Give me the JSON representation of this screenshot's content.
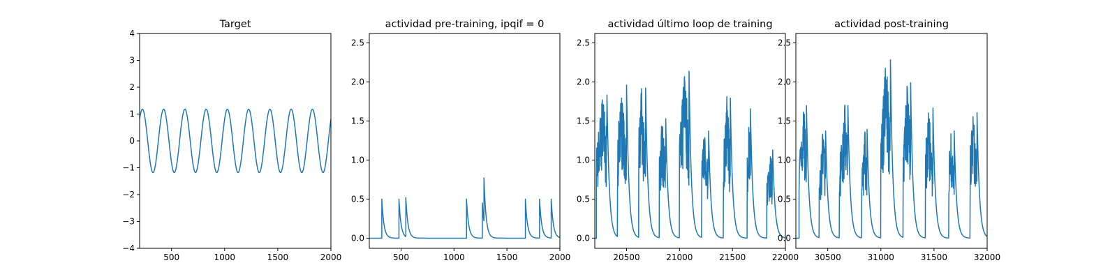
{
  "chart_data": [
    {
      "type": "line",
      "title": "Target",
      "xlabel": "",
      "ylabel": "",
      "xlim": [
        200,
        2000
      ],
      "ylim": [
        -4,
        4
      ],
      "xticks": [
        500,
        1000,
        1500,
        2000
      ],
      "yticks": [
        -4,
        -3,
        -2,
        -1,
        0,
        1,
        2,
        3,
        4
      ],
      "xtick_labels": [
        "500",
        "1000",
        "1500",
        "2000"
      ],
      "ytick_labels": [
        "−4",
        "−3",
        "−2",
        "−1",
        "0",
        "1",
        "2",
        "3",
        "4"
      ],
      "series": [
        {
          "color": "#1f77b4",
          "waveform": "sine",
          "amplitude": 1.18,
          "period": 200,
          "phase_ref_x": 226,
          "x_range": [
            200,
            2000
          ]
        }
      ],
      "grid": false,
      "legend": "none"
    },
    {
      "type": "line",
      "title": "actividad pre-training, ipqif = 0",
      "xlabel": "",
      "ylabel": "",
      "xlim": [
        200,
        2000
      ],
      "ylim": [
        -0.13,
        2.62
      ],
      "xticks": [
        500,
        1000,
        1500,
        2000
      ],
      "yticks": [
        0.0,
        0.5,
        1.0,
        1.5,
        2.0,
        2.5
      ],
      "xtick_labels": [
        "500",
        "1000",
        "1500",
        "2000"
      ],
      "ytick_labels": [
        "0.0",
        "0.5",
        "1.0",
        "1.5",
        "2.0",
        "2.5"
      ],
      "series": [
        {
          "color": "#1f77b4",
          "waveform": "spike-decay",
          "baseline": 0.0,
          "decay": 20,
          "x_range": [
            200,
            2000
          ],
          "spikes": [
            {
              "x": 318,
              "h": 0.5
            },
            {
              "x": 480,
              "h": 0.5
            },
            {
              "x": 545,
              "h": 0.52
            },
            {
              "x": 1118,
              "h": 0.5
            },
            {
              "x": 1268,
              "h": 0.45
            },
            {
              "x": 1283,
              "h": 0.77
            },
            {
              "x": 1674,
              "h": 0.5
            },
            {
              "x": 1808,
              "h": 0.5
            },
            {
              "x": 1918,
              "h": 0.5
            }
          ]
        }
      ],
      "grid": false,
      "legend": "none"
    },
    {
      "type": "line",
      "title": "actividad último loop de training",
      "xlabel": "",
      "ylabel": "",
      "xlim": [
        20200,
        22000
      ],
      "ylim": [
        -0.13,
        2.62
      ],
      "xticks": [
        20500,
        21000,
        21500,
        22000
      ],
      "yticks": [
        0.0,
        0.5,
        1.0,
        1.5,
        2.0,
        2.5
      ],
      "xtick_labels": [
        "20500",
        "21000",
        "21500",
        "22000"
      ],
      "ytick_labels": [
        "0.0",
        "0.5",
        "1.0",
        "1.5",
        "2.0",
        "2.5"
      ],
      "series": [
        {
          "color": "#1f77b4",
          "waveform": "bursts",
          "baseline": 0.0,
          "decay": 22,
          "x_range": [
            20200,
            22000
          ],
          "bursts": [
            {
              "start": 20215,
              "end": 20315,
              "peak": 1.87,
              "ends": 1.4
            },
            {
              "start": 20415,
              "end": 20500,
              "peak": 2.0,
              "ends": 1.2
            },
            {
              "start": 20615,
              "end": 20680,
              "peak": 1.96,
              "ends": 1.3
            },
            {
              "start": 20810,
              "end": 20870,
              "peak": 1.56,
              "ends": 1.3
            },
            {
              "start": 21000,
              "end": 21090,
              "peak": 2.18,
              "ends": 1.35
            },
            {
              "start": 21210,
              "end": 21275,
              "peak": 1.4,
              "ends": 1.1
            },
            {
              "start": 21415,
              "end": 21480,
              "peak": 1.83,
              "ends": 1.3
            },
            {
              "start": 21640,
              "end": 21670,
              "peak": 1.69,
              "ends": 1.2
            },
            {
              "start": 21825,
              "end": 21880,
              "peak": 1.15,
              "ends": 0.9
            }
          ]
        }
      ],
      "grid": false,
      "legend": "none"
    },
    {
      "type": "line",
      "title": "actividad post-training",
      "xlabel": "",
      "ylabel": "",
      "xlim": [
        30200,
        32000
      ],
      "ylim": [
        -0.13,
        2.62
      ],
      "xticks": [
        30500,
        31000,
        31500,
        32000
      ],
      "yticks": [
        0.0,
        0.5,
        1.0,
        1.5,
        2.0,
        2.5
      ],
      "xtick_labels": [
        "30500",
        "31000",
        "31500",
        "32000"
      ],
      "ytick_labels": [
        "0.0",
        "0.5",
        "1.0",
        "1.5",
        "2.0",
        "2.5"
      ],
      "series": [
        {
          "color": "#1f77b4",
          "waveform": "bursts",
          "baseline": 0.0,
          "decay": 22,
          "x_range": [
            30200,
            32000
          ],
          "bursts": [
            {
              "start": 30230,
              "end": 30300,
              "peak": 1.73,
              "ends": 1.1
            },
            {
              "start": 30420,
              "end": 30480,
              "peak": 1.4,
              "ends": 1.1
            },
            {
              "start": 30610,
              "end": 30690,
              "peak": 1.73,
              "ends": 1.3
            },
            {
              "start": 30820,
              "end": 30870,
              "peak": 1.42,
              "ends": 1.1
            },
            {
              "start": 31000,
              "end": 31090,
              "peak": 2.33,
              "ends": 1.4
            },
            {
              "start": 31210,
              "end": 31280,
              "peak": 2.03,
              "ends": 1.3
            },
            {
              "start": 31420,
              "end": 31490,
              "peak": 1.7,
              "ends": 1.3
            },
            {
              "start": 31640,
              "end": 31690,
              "peak": 1.4,
              "ends": 1.1
            },
            {
              "start": 31840,
              "end": 31905,
              "peak": 1.64,
              "ends": 1.2
            }
          ]
        }
      ],
      "grid": false,
      "legend": "none"
    }
  ]
}
